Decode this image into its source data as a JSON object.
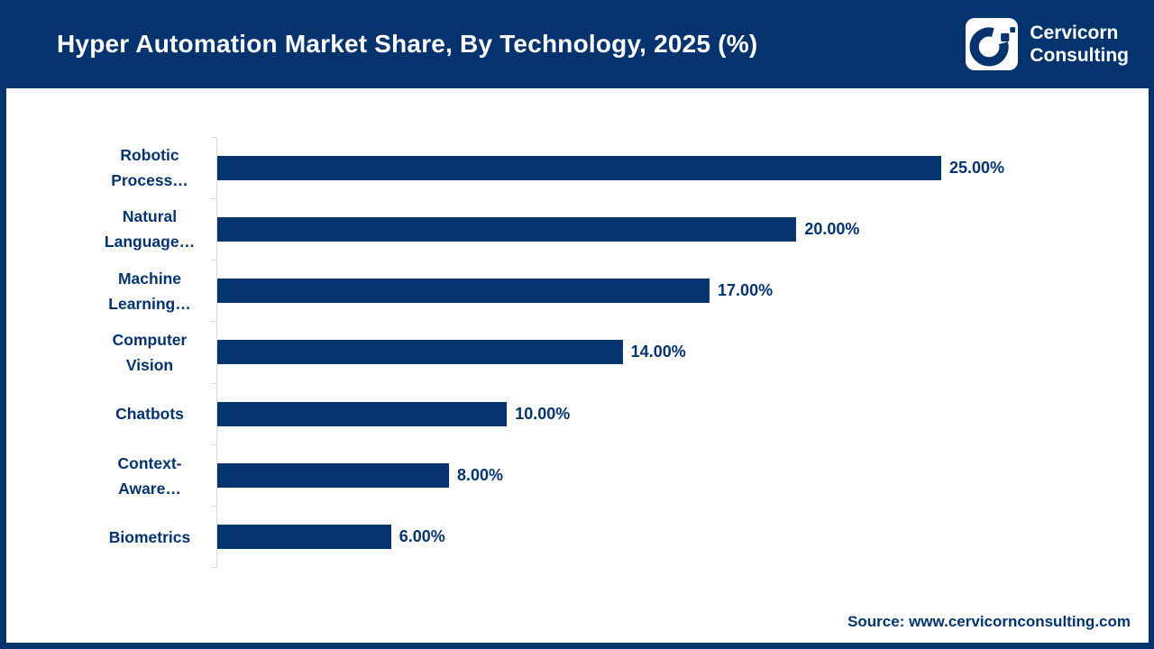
{
  "header": {
    "title": "Hyper Automation Market Share, By Technology, 2025 (%)",
    "logo": {
      "name": "cervicorn-consulting-logo",
      "line1": "Cervicorn",
      "line2": "Consulting"
    }
  },
  "footer": {
    "source": "Source: www.cervicornconsulting.com"
  },
  "colors": {
    "navy": "#04336E",
    "axis_line": "#D9D9D9",
    "background": "#FFFFFF",
    "title_text": "#FFFFFF"
  },
  "chart_data": {
    "type": "bar",
    "orientation": "horizontal",
    "title": "Hyper Automation Market Share, By Technology, 2025 (%)",
    "categories": [
      "Robotic Process…",
      "Natural Language…",
      "Machine Learning…",
      "Computer Vision",
      "Chatbots",
      "Context-Aware…",
      "Biometrics"
    ],
    "values": [
      25,
      20,
      17,
      14,
      10,
      8,
      6
    ],
    "value_labels": [
      "25.00%",
      "20.00%",
      "17.00%",
      "14.00%",
      "10.00%",
      "8.00%",
      "6.00%"
    ],
    "xlabel": "",
    "ylabel": "",
    "xlim": [
      0,
      25
    ],
    "grid": false,
    "legend": false,
    "bar_color": "#04336E"
  }
}
